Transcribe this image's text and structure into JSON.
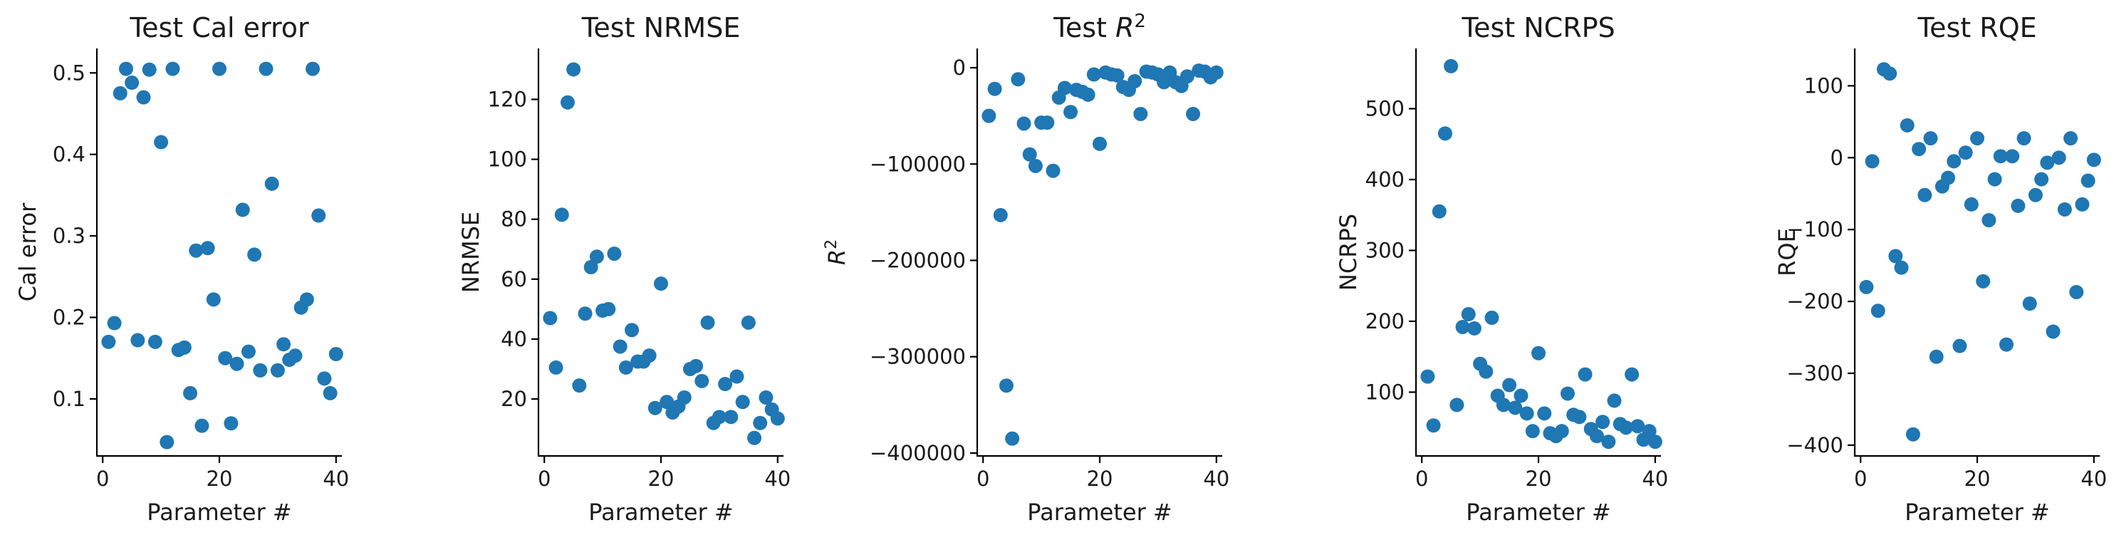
{
  "chart_data": [
    {
      "type": "scatter",
      "title": "Test Cal error",
      "xlabel": "Parameter #",
      "ylabel": "Cal error",
      "xlim": [
        -1,
        41
      ],
      "ylim": [
        0.03,
        0.53
      ],
      "xticks": [
        0,
        20,
        40
      ],
      "yticks": [
        0.1,
        0.2,
        0.3,
        0.4,
        0.5
      ],
      "ytick_labels": [
        "0.1",
        "0.2",
        "0.3",
        "0.4",
        "0.5"
      ],
      "color": "#1f77b4",
      "x": [
        1,
        2,
        3,
        4,
        5,
        6,
        7,
        8,
        9,
        10,
        11,
        12,
        13,
        14,
        15,
        16,
        17,
        18,
        19,
        20,
        21,
        22,
        23,
        24,
        25,
        26,
        27,
        28,
        29,
        30,
        31,
        32,
        33,
        34,
        35,
        36,
        37,
        38,
        39,
        40
      ],
      "y": [
        0.17,
        0.193,
        0.475,
        0.505,
        0.488,
        0.172,
        0.47,
        0.504,
        0.17,
        0.415,
        0.047,
        0.505,
        0.16,
        0.163,
        0.107,
        0.282,
        0.067,
        0.285,
        0.222,
        0.505,
        0.15,
        0.07,
        0.143,
        0.332,
        0.158,
        0.277,
        0.135,
        0.505,
        0.364,
        0.135,
        0.167,
        0.148,
        0.153,
        0.212,
        0.222,
        0.505,
        0.325,
        0.125,
        0.107,
        0.155
      ]
    },
    {
      "type": "scatter",
      "title": "Test NRMSE",
      "xlabel": "Parameter #",
      "ylabel": "NRMSE",
      "xlim": [
        -1,
        41
      ],
      "ylim": [
        1,
        137
      ],
      "xticks": [
        0,
        20,
        40
      ],
      "yticks": [
        20,
        40,
        60,
        80,
        100,
        120
      ],
      "ytick_labels": [
        "20",
        "40",
        "60",
        "80",
        "100",
        "120"
      ],
      "color": "#1f77b4",
      "x": [
        1,
        2,
        3,
        4,
        5,
        6,
        7,
        8,
        9,
        10,
        11,
        12,
        13,
        14,
        15,
        16,
        17,
        18,
        19,
        20,
        21,
        22,
        23,
        24,
        25,
        26,
        27,
        28,
        29,
        30,
        31,
        32,
        33,
        34,
        35,
        36,
        37,
        38,
        39,
        40
      ],
      "y": [
        47,
        30.5,
        81.5,
        119,
        130,
        24.5,
        48.5,
        64,
        67.5,
        49.5,
        50,
        68.5,
        37.5,
        30.5,
        43,
        32.5,
        32.5,
        34.5,
        17,
        58.5,
        19,
        15.5,
        17.5,
        20.5,
        30,
        31,
        26,
        45.5,
        12,
        14,
        25,
        14,
        27.5,
        19,
        45.5,
        7,
        12,
        20.5,
        16.5,
        13.5
      ]
    },
    {
      "type": "scatter",
      "title": "Test R²",
      "xlabel": "Parameter #",
      "ylabel": "R²",
      "xlim": [
        -1,
        41
      ],
      "ylim": [
        -403000,
        20000
      ],
      "xticks": [
        0,
        20,
        40
      ],
      "yticks": [
        0,
        -100000,
        -200000,
        -300000,
        -400000
      ],
      "ytick_labels": [
        "0",
        "−100000",
        "−200000",
        "−300000",
        "−400000"
      ],
      "color": "#1f77b4",
      "x": [
        1,
        2,
        3,
        4,
        5,
        6,
        7,
        8,
        9,
        10,
        11,
        12,
        13,
        14,
        15,
        16,
        17,
        18,
        19,
        20,
        21,
        22,
        23,
        24,
        25,
        26,
        27,
        28,
        29,
        30,
        31,
        32,
        33,
        34,
        35,
        36,
        37,
        38,
        39,
        40
      ],
      "y": [
        -50000,
        -22000,
        -153000,
        -330000,
        -385000,
        -12000,
        -58000,
        -90000,
        -102000,
        -57000,
        -57000,
        -107000,
        -31000,
        -21000,
        -46000,
        -23000,
        -25000,
        -28000,
        -7000,
        -79000,
        -5000,
        -7000,
        -8000,
        -20000,
        -23000,
        -14000,
        -48000,
        -4000,
        -5000,
        -7000,
        -15000,
        -5000,
        -15000,
        -19000,
        -9000,
        -48000,
        -3000,
        -4000,
        -10000,
        -5000
      ]
    },
    {
      "type": "scatter",
      "title": "Test NCRPS",
      "xlabel": "Parameter #",
      "ylabel": "NCRPS",
      "xlim": [
        -1,
        41
      ],
      "ylim": [
        10,
        585
      ],
      "xticks": [
        0,
        20,
        40
      ],
      "yticks": [
        100,
        200,
        300,
        400,
        500
      ],
      "ytick_labels": [
        "100",
        "200",
        "300",
        "400",
        "500"
      ],
      "color": "#1f77b4",
      "x": [
        1,
        2,
        3,
        4,
        5,
        6,
        7,
        8,
        9,
        10,
        11,
        12,
        13,
        14,
        15,
        16,
        17,
        18,
        19,
        20,
        21,
        22,
        23,
        24,
        25,
        26,
        27,
        28,
        29,
        30,
        31,
        32,
        33,
        34,
        35,
        36,
        37,
        38,
        39,
        40
      ],
      "y": [
        122,
        53,
        355,
        465,
        560,
        82,
        192,
        210,
        190,
        140,
        129,
        205,
        95,
        82,
        110,
        78,
        95,
        70,
        45,
        155,
        70,
        42,
        38,
        45,
        98,
        68,
        65,
        125,
        48,
        38,
        58,
        30,
        88,
        55,
        50,
        125,
        52,
        33,
        45,
        30
      ]
    },
    {
      "type": "scatter",
      "title": "Test RQE",
      "xlabel": "Parameter #",
      "ylabel": "RQE",
      "xlim": [
        -1,
        41
      ],
      "ylim": [
        -415,
        152
      ],
      "xticks": [
        0,
        20,
        40
      ],
      "yticks": [
        100,
        0,
        -100,
        -200,
        -300,
        -400
      ],
      "ytick_labels": [
        "100",
        "0",
        "−100",
        "−200",
        "−300",
        "−400"
      ],
      "color": "#1f77b4",
      "x": [
        1,
        2,
        3,
        4,
        5,
        6,
        7,
        8,
        9,
        10,
        11,
        12,
        13,
        14,
        15,
        16,
        17,
        18,
        19,
        20,
        21,
        22,
        23,
        24,
        25,
        26,
        27,
        28,
        29,
        30,
        31,
        32,
        33,
        34,
        35,
        36,
        37,
        38,
        39,
        40
      ],
      "y": [
        -180,
        -5,
        -213,
        123,
        117,
        -137,
        -153,
        45,
        -385,
        12,
        -52,
        27,
        -277,
        -40,
        -28,
        -5,
        -262,
        7,
        -65,
        27,
        -172,
        -87,
        -30,
        2,
        -260,
        2,
        -67,
        27,
        -203,
        -52,
        -30,
        -7,
        -242,
        0,
        -72,
        27,
        -187,
        -65,
        -32,
        -3
      ]
    }
  ]
}
